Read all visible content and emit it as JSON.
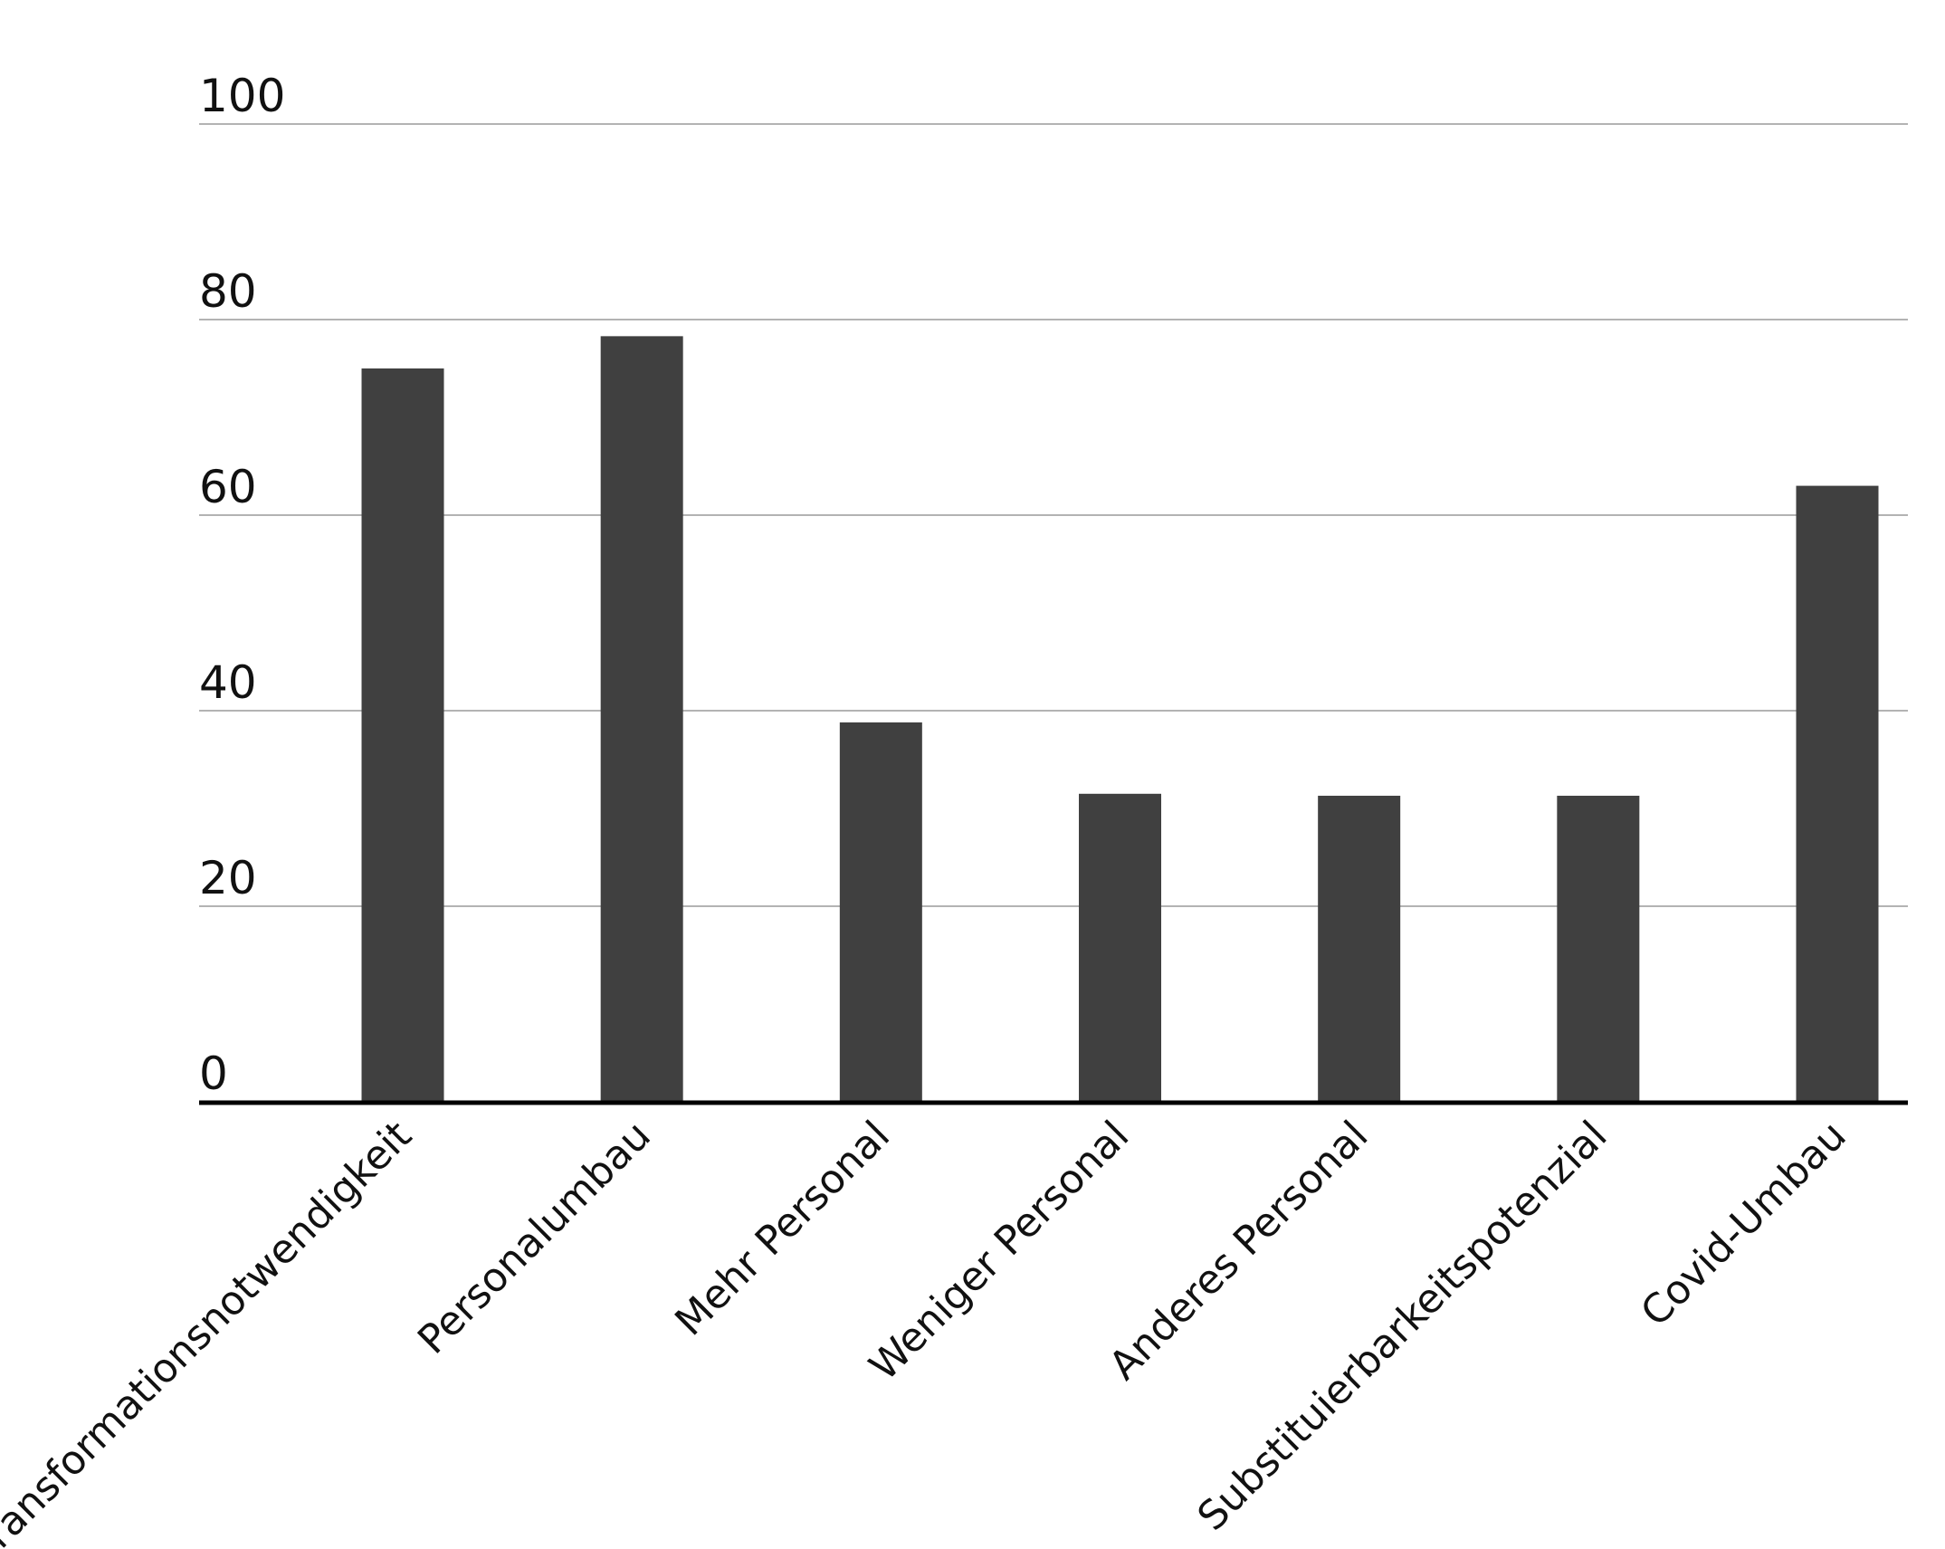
{
  "chart_data": {
    "type": "bar",
    "categories": [
      "Transformationsnotwendigkeit",
      "Personalumbau",
      "Mehr Personal",
      "Weniger Personal",
      "Anderes Personal",
      "Substituierbarkeitspotenzial",
      "Covid-Umbau"
    ],
    "values": [
      75,
      78.3,
      38.8,
      31.5,
      31.3,
      31.3,
      63
    ],
    "title": "",
    "xlabel": "",
    "ylabel": "",
    "ylim": [
      0,
      100
    ],
    "yticks": [
      0,
      20,
      40,
      60,
      80,
      100
    ],
    "grid": true,
    "bar_color": "#404040",
    "gridline_color": "#9a9a9a",
    "baseline_color": "#000000"
  }
}
